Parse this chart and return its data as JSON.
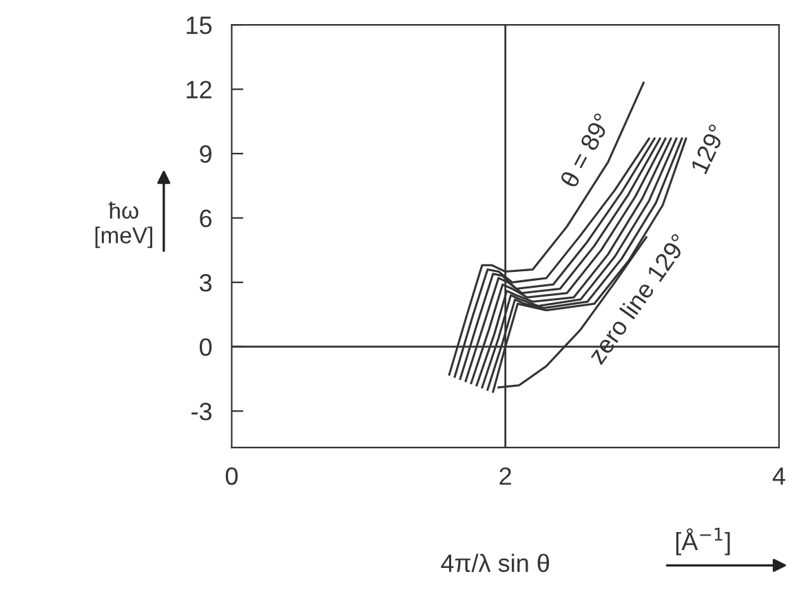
{
  "chart_data": {
    "type": "line",
    "xlabel": "4π/λ sin θ",
    "ylabel": "ħω\n[meV]",
    "annotations": [
      "[Å$^{−1}$]"
    ],
    "xlim": [
      0,
      4
    ],
    "xticks": [
      0,
      2,
      4
    ],
    "ylim": [
      -4.7,
      15
    ],
    "yticks": [
      15,
      12,
      9,
      6,
      3,
      0,
      -3
    ],
    "grid": false,
    "legend": false,
    "marker": "none",
    "line_style": "solid",
    "ref_lines": [
      {
        "axis": "x",
        "value": 2,
        "color": "#333333"
      },
      {
        "axis": "y",
        "value": 0,
        "color": "#333333"
      }
    ],
    "series": [
      {
        "name": "θ = 89°",
        "color": "#333333",
        "x": [
          1.59,
          1.72,
          1.83,
          1.9,
          2.0,
          2.2,
          2.45,
          2.75,
          3.01
        ],
        "values": [
          -1.3,
          1.5,
          3.8,
          3.8,
          3.5,
          3.6,
          5.6,
          8.6,
          12.3
        ]
      },
      {
        "color": "#333333",
        "x": [
          1.63,
          1.76,
          1.87,
          1.95,
          2.05,
          2.3,
          2.55,
          2.8,
          3.05
        ],
        "values": [
          -1.4,
          1.4,
          3.6,
          3.5,
          3.0,
          3.2,
          5.2,
          7.3,
          9.7
        ]
      },
      {
        "color": "#333333",
        "x": [
          1.67,
          1.8,
          1.91,
          1.98,
          2.08,
          2.35,
          2.6,
          2.85,
          3.09
        ],
        "values": [
          -1.5,
          1.2,
          3.4,
          3.3,
          2.7,
          2.9,
          4.9,
          7.2,
          9.7
        ]
      },
      {
        "color": "#333333",
        "x": [
          1.71,
          1.84,
          1.95,
          2.02,
          2.12,
          2.4,
          2.65,
          2.9,
          3.13
        ],
        "values": [
          -1.6,
          1.0,
          3.2,
          3.0,
          2.5,
          2.7,
          4.7,
          7.1,
          9.7
        ]
      },
      {
        "color": "#333333",
        "x": [
          1.75,
          1.88,
          1.98,
          2.05,
          2.16,
          2.45,
          2.7,
          2.95,
          3.17
        ],
        "values": [
          -1.7,
          0.8,
          2.9,
          2.7,
          2.3,
          2.5,
          4.5,
          7.0,
          9.7
        ]
      },
      {
        "color": "#333333",
        "x": [
          1.79,
          1.92,
          2.01,
          2.08,
          2.2,
          2.5,
          2.75,
          3.0,
          3.21
        ],
        "values": [
          -1.8,
          0.6,
          2.6,
          2.4,
          2.1,
          2.3,
          4.3,
          6.9,
          9.7
        ]
      },
      {
        "color": "#333333",
        "x": [
          1.83,
          1.95,
          2.04,
          2.11,
          2.24,
          2.55,
          2.8,
          3.05,
          3.25
        ],
        "values": [
          -1.9,
          0.4,
          2.4,
          2.2,
          1.9,
          2.2,
          4.2,
          6.8,
          9.7
        ]
      },
      {
        "color": "#333333",
        "x": [
          1.87,
          1.98,
          2.07,
          2.14,
          2.28,
          2.6,
          2.85,
          3.1,
          3.29
        ],
        "values": [
          -2.0,
          0.2,
          2.2,
          2.0,
          1.8,
          2.1,
          4.1,
          6.7,
          9.7
        ]
      },
      {
        "name": "129°",
        "color": "#333333",
        "x": [
          1.91,
          2.0,
          2.09,
          2.16,
          2.3,
          2.65,
          2.9,
          3.15,
          3.32
        ],
        "values": [
          -2.1,
          0.0,
          2.0,
          1.9,
          1.7,
          2.0,
          4.0,
          6.6,
          9.7
        ]
      },
      {
        "name": "zero line 129°",
        "color": "#333333",
        "x": [
          1.95,
          2.1,
          2.3,
          2.55,
          2.8,
          3.03
        ],
        "values": [
          -1.9,
          -1.8,
          -0.9,
          0.8,
          3.0,
          5.1
        ]
      }
    ]
  }
}
